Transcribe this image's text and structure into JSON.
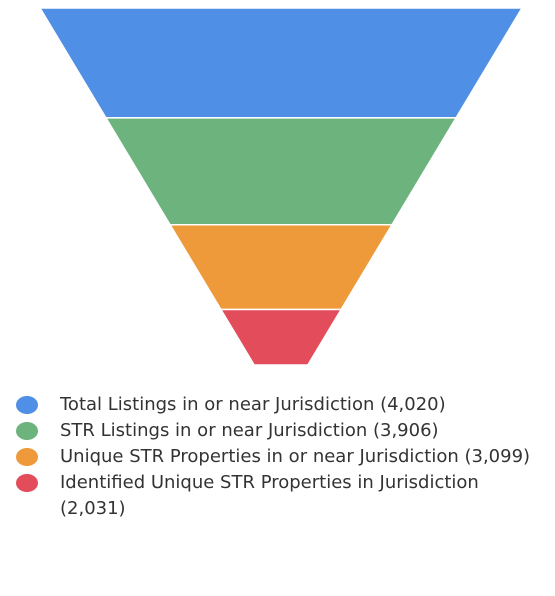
{
  "chart_data": {
    "type": "funnel",
    "categories": [
      "Total Listings in or near Jurisdiction (4,020)",
      "STR Listings in or near Jurisdiction (3,906)",
      "Unique STR Properties in or near Jurisdiction (3,099)",
      "Identified Unique STR Properties in Jurisdiction (2,031)"
    ],
    "values": [
      4020,
      3906,
      3099,
      2031
    ],
    "colors": [
      "#4f8fe6",
      "#6db37e",
      "#ee9a3a",
      "#e34c5a"
    ],
    "legend": "bottom"
  }
}
